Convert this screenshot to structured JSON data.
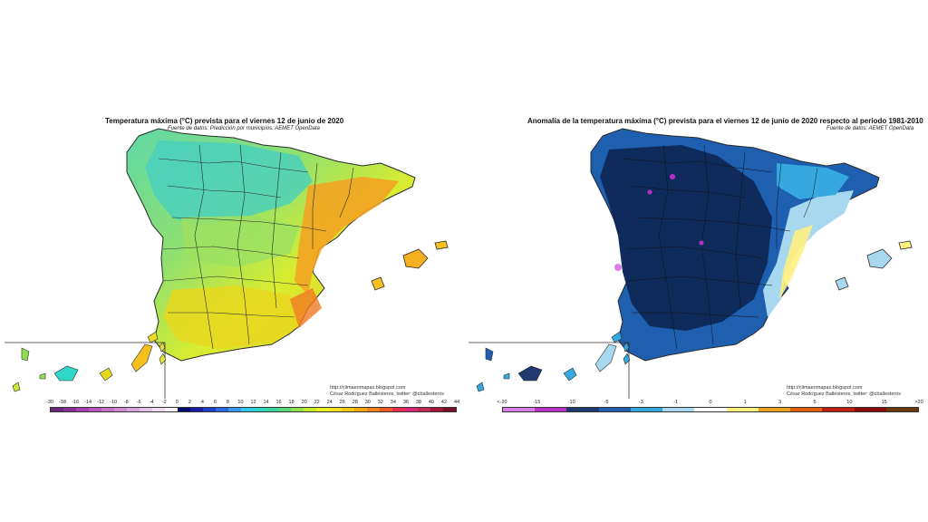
{
  "left_map": {
    "title": "Temperatura máxima (°C) prevista para el viernes 12 de junio de 2020",
    "subtitle": "Fuente de datos: Predicción por municipios. AEMET OpenData",
    "credit_line1": "http://climaenmapas.blogspot.com",
    "credit_line2": "César Rodríguez Ballesteros, twitter: @cballesteros",
    "legend_ticks": [
      "-30",
      "-18",
      "-16",
      "-14",
      "-12",
      "-10",
      "-8",
      "-6",
      "-4",
      "-2",
      "0",
      "2",
      "4",
      "6",
      "8",
      "10",
      "12",
      "14",
      "16",
      "18",
      "20",
      "22",
      "24",
      "26",
      "28",
      "30",
      "32",
      "34",
      "36",
      "38",
      "40",
      "42",
      "44"
    ],
    "legend_colors": [
      "#6a2a7a",
      "#8a2f95",
      "#a53fb0",
      "#b855c0",
      "#c46fc8",
      "#cf8ad2",
      "#d9a5dc",
      "#e3c0e6",
      "#eedbf0",
      "#f8f0f8",
      "#0a0a6e",
      "#1a1aa0",
      "#1f3fc8",
      "#2a6ae0",
      "#3a9af0",
      "#33c8e8",
      "#30d6c8",
      "#3ad6a0",
      "#5ad878",
      "#90e050",
      "#c8e830",
      "#e8f020",
      "#f5e020",
      "#f8c818",
      "#f5a518",
      "#f28220",
      "#ee5a24",
      "#e43050",
      "#d82878",
      "#c02858",
      "#a01838",
      "#7a1028"
    ]
  },
  "right_map": {
    "title": "Anomalía de la temperatura máxima (°C) prevista para el viernes 12 de junio de 2020 respecto al periodo 1981-2010",
    "subtitle": "Fuente de datos: AEMET OpenData",
    "credit_line1": "http://climaenmapas.blogspot.com",
    "credit_line2": "César Rodríguez Ballesteros, twitter: @cballesteros",
    "legend_ticks": [
      "<-20",
      "-15",
      "-10",
      "-5",
      "-3",
      "-1",
      "0",
      "1",
      "3",
      "5",
      "10",
      "15",
      ">20"
    ],
    "legend_colors": [
      "#d87ee8",
      "#b830c8",
      "#1e3a6e",
      "#1e5fb0",
      "#35a8e0",
      "#a8d8f0",
      "#ffffff",
      "#fff080",
      "#f0a020",
      "#e06010",
      "#c02010",
      "#8a0a0a",
      "#6a3a0a"
    ]
  },
  "colors": {
    "sea": "#ffffff",
    "border": "#2a2a2a"
  }
}
